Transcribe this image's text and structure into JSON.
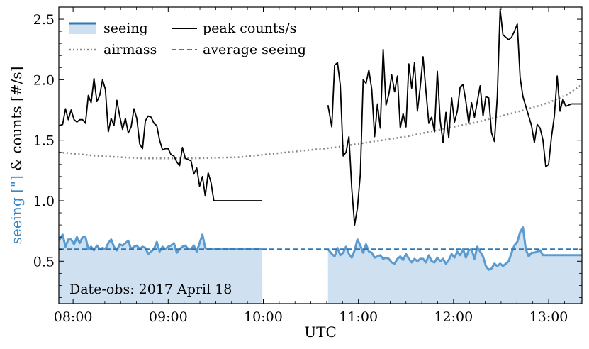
{
  "chart_data": {
    "type": "line",
    "title": "",
    "xlabel": "UTC",
    "ylabel_parts": [
      {
        "text": "seeing [\"]",
        "color": "#3a86c4"
      },
      {
        "text": " & ",
        "color": "#000000"
      },
      {
        "text": "counts [#/s]",
        "color": "#000000"
      }
    ],
    "xlim": [
      7.85,
      13.35
    ],
    "ylim": [
      0.15,
      2.6
    ],
    "xticks": [
      8,
      9,
      10,
      11,
      12,
      13
    ],
    "xtick_labels": [
      "08:00",
      "09:00",
      "10:00",
      "11:00",
      "12:00",
      "13:00"
    ],
    "yticks": [
      0.5,
      1.0,
      1.5,
      2.0,
      2.5
    ],
    "ytick_labels": [
      "0.5",
      "1.0",
      "1.5",
      "2.0",
      "2.5"
    ],
    "legend": {
      "placement": "top-left",
      "entries": [
        {
          "label": "seeing",
          "style": "filled-band"
        },
        {
          "label": "peak counts/s",
          "style": "solid-black"
        },
        {
          "label": "airmass",
          "style": "dotted-gray"
        },
        {
          "label": "average seeing",
          "style": "dashed-blue"
        }
      ]
    },
    "annotation": "Date-obs: 2017 April 18",
    "colors": {
      "seeing_line": "#5b9bd0",
      "seeing_fill": "#cfe1f0",
      "average": "#2e78b5",
      "counts": "#000000",
      "airmass": "#888888"
    },
    "average_seeing": 0.6,
    "series": [
      {
        "name": "peak counts/s",
        "segments": [
          {
            "x": [
              7.85,
              7.89,
              7.92,
              7.95,
              7.98,
              8.01,
              8.04,
              8.07,
              8.1,
              8.13,
              8.16,
              8.19,
              8.22,
              8.25,
              8.28,
              8.31,
              8.34,
              8.37,
              8.4,
              8.43,
              8.46,
              8.49,
              8.52,
              8.55,
              8.58,
              8.61,
              8.64,
              8.67,
              8.7,
              8.73,
              8.76,
              8.79,
              8.82,
              8.85,
              8.88,
              8.91,
              8.94,
              8.97,
              9.0,
              9.03,
              9.06,
              9.09,
              9.12,
              9.15,
              9.18,
              9.21,
              9.24,
              9.27,
              9.3,
              9.33,
              9.36,
              9.39,
              9.42,
              9.45,
              9.48,
              9.51,
              9.54,
              9.57,
              9.6,
              9.63,
              9.66,
              9.69,
              9.72,
              9.75,
              9.78,
              9.81,
              9.84,
              9.87,
              9.9,
              9.93,
              9.96,
              9.99
            ],
            "y": [
              1.62,
              1.63,
              1.76,
              1.67,
              1.75,
              1.67,
              1.65,
              1.67,
              1.67,
              1.64,
              1.87,
              1.81,
              2.01,
              1.82,
              1.87,
              2.0,
              1.92,
              1.57,
              1.68,
              1.62,
              1.83,
              1.7,
              1.59,
              1.68,
              1.56,
              1.61,
              1.76,
              1.68,
              1.47,
              1.43,
              1.66,
              1.7,
              1.69,
              1.64,
              1.62,
              1.5,
              1.42,
              1.43,
              1.43,
              1.38,
              1.37,
              1.32,
              1.29,
              1.44,
              1.35,
              1.34,
              1.33,
              1.22,
              1.27,
              1.12,
              1.2,
              1.04,
              1.23,
              1.15,
              1.0,
              1.0,
              1.0,
              1.0,
              1.0,
              1.0,
              1.0,
              1.0,
              1.0,
              1.0,
              1.0,
              1.0,
              1.0,
              1.0,
              1.0,
              1.0,
              1.0,
              1.0
            ]
          },
          {
            "x": [
              10.68,
              10.72,
              10.75,
              10.78,
              10.81,
              10.84,
              10.87,
              10.9,
              10.93,
              10.96,
              10.99,
              11.02,
              11.05,
              11.08,
              11.11,
              11.14,
              11.17,
              11.2,
              11.23,
              11.26,
              11.29,
              11.32,
              11.35,
              11.38,
              11.41,
              11.44,
              11.47,
              11.5,
              11.53,
              11.56,
              11.59,
              11.62,
              11.65,
              11.68,
              11.71,
              11.74,
              11.77,
              11.8,
              11.83,
              11.86,
              11.89,
              11.92,
              11.95,
              11.98,
              12.01,
              12.04,
              12.07,
              12.1,
              12.13,
              12.16,
              12.19,
              12.22,
              12.25,
              12.28,
              12.31,
              12.34,
              12.37,
              12.4,
              12.43,
              12.46,
              12.49,
              12.52,
              12.55,
              12.58,
              12.61,
              12.64,
              12.67,
              12.7,
              12.73,
              12.76,
              12.79,
              12.82,
              12.85,
              12.88,
              12.91,
              12.94,
              12.97,
              13.0,
              13.03,
              13.06,
              13.09,
              13.12,
              13.15,
              13.18,
              13.21,
              13.24,
              13.27,
              13.3,
              13.35
            ],
            "y": [
              1.79,
              1.61,
              2.12,
              2.14,
              1.95,
              1.37,
              1.4,
              1.53,
              1.1,
              0.8,
              0.94,
              1.22,
              2.0,
              1.97,
              2.08,
              1.92,
              1.53,
              1.8,
              1.6,
              2.25,
              1.79,
              1.88,
              2.04,
              1.9,
              2.03,
              1.6,
              1.72,
              1.61,
              2.13,
              1.93,
              2.14,
              1.74,
              1.94,
              2.19,
              1.91,
              1.64,
              1.69,
              1.57,
              2.07,
              1.66,
              1.48,
              1.73,
              1.52,
              1.85,
              1.65,
              1.74,
              1.94,
              1.96,
              1.82,
              1.64,
              1.81,
              1.69,
              1.82,
              1.95,
              1.7,
              1.86,
              1.85,
              1.56,
              1.49,
              1.86,
              2.58,
              2.37,
              2.35,
              2.33,
              2.35,
              2.4,
              2.46,
              2.02,
              1.86,
              1.78,
              1.7,
              1.62,
              1.48,
              1.63,
              1.6,
              1.5,
              1.28,
              1.3,
              1.53,
              1.7,
              2.03,
              1.74,
              1.84,
              1.78,
              1.79,
              1.8,
              1.8,
              1.8,
              1.8
            ]
          }
        ]
      },
      {
        "name": "seeing",
        "segments": [
          {
            "x": [
              7.85,
              7.89,
              7.92,
              7.95,
              7.98,
              8.01,
              8.04,
              8.07,
              8.1,
              8.13,
              8.16,
              8.19,
              8.22,
              8.25,
              8.28,
              8.31,
              8.34,
              8.37,
              8.4,
              8.43,
              8.46,
              8.49,
              8.52,
              8.55,
              8.58,
              8.61,
              8.64,
              8.67,
              8.7,
              8.73,
              8.76,
              8.79,
              8.82,
              8.85,
              8.88,
              8.91,
              8.94,
              8.97,
              9.0,
              9.03,
              9.06,
              9.09,
              9.12,
              9.15,
              9.18,
              9.21,
              9.24,
              9.27,
              9.3,
              9.33,
              9.36,
              9.39,
              9.42,
              9.45,
              9.48,
              9.51,
              9.54,
              9.57,
              9.6,
              9.63,
              9.66,
              9.69,
              9.72,
              9.75,
              9.78,
              9.81,
              9.84,
              9.87,
              9.9,
              9.93,
              9.96,
              9.99
            ],
            "y": [
              0.67,
              0.72,
              0.62,
              0.68,
              0.68,
              0.64,
              0.7,
              0.65,
              0.7,
              0.7,
              0.6,
              0.62,
              0.59,
              0.63,
              0.6,
              0.61,
              0.6,
              0.65,
              0.68,
              0.62,
              0.59,
              0.64,
              0.63,
              0.65,
              0.67,
              0.6,
              0.62,
              0.63,
              0.6,
              0.62,
              0.61,
              0.56,
              0.58,
              0.6,
              0.66,
              0.58,
              0.62,
              0.6,
              0.62,
              0.63,
              0.65,
              0.57,
              0.6,
              0.62,
              0.63,
              0.6,
              0.6,
              0.63,
              0.58,
              0.65,
              0.72,
              0.61,
              0.6,
              0.6,
              0.6,
              0.6,
              0.6,
              0.6,
              0.6,
              0.6,
              0.6,
              0.6,
              0.6,
              0.6,
              0.6,
              0.6,
              0.6,
              0.6,
              0.6,
              0.6,
              0.6,
              0.6
            ]
          },
          {
            "x": [
              10.68,
              10.72,
              10.75,
              10.78,
              10.81,
              10.84,
              10.87,
              10.9,
              10.93,
              10.96,
              10.99,
              11.02,
              11.05,
              11.08,
              11.11,
              11.14,
              11.17,
              11.2,
              11.23,
              11.26,
              11.29,
              11.32,
              11.35,
              11.38,
              11.41,
              11.44,
              11.47,
              11.5,
              11.53,
              11.56,
              11.59,
              11.62,
              11.65,
              11.68,
              11.71,
              11.74,
              11.77,
              11.8,
              11.83,
              11.86,
              11.89,
              11.92,
              11.95,
              11.98,
              12.01,
              12.04,
              12.07,
              12.1,
              12.13,
              12.16,
              12.19,
              12.22,
              12.25,
              12.28,
              12.31,
              12.34,
              12.37,
              12.4,
              12.43,
              12.46,
              12.49,
              12.52,
              12.55,
              12.58,
              12.61,
              12.64,
              12.67,
              12.7,
              12.73,
              12.76,
              12.79,
              12.82,
              12.85,
              12.88,
              12.91,
              12.94,
              12.97,
              13.0,
              13.03,
              13.06,
              13.09,
              13.12,
              13.15,
              13.18,
              13.21,
              13.24,
              13.27,
              13.3,
              13.35
            ],
            "y": [
              0.6,
              0.56,
              0.54,
              0.61,
              0.55,
              0.57,
              0.62,
              0.56,
              0.53,
              0.59,
              0.68,
              0.63,
              0.57,
              0.64,
              0.58,
              0.57,
              0.53,
              0.54,
              0.55,
              0.52,
              0.53,
              0.52,
              0.49,
              0.48,
              0.52,
              0.54,
              0.51,
              0.56,
              0.52,
              0.49,
              0.52,
              0.5,
              0.52,
              0.52,
              0.49,
              0.55,
              0.5,
              0.49,
              0.53,
              0.5,
              0.52,
              0.48,
              0.51,
              0.56,
              0.53,
              0.58,
              0.55,
              0.6,
              0.53,
              0.59,
              0.6,
              0.52,
              0.62,
              0.58,
              0.54,
              0.46,
              0.43,
              0.44,
              0.48,
              0.46,
              0.48,
              0.46,
              0.48,
              0.5,
              0.57,
              0.63,
              0.66,
              0.74,
              0.78,
              0.6,
              0.54,
              0.57,
              0.57,
              0.58,
              0.59,
              0.55,
              0.55,
              0.55,
              0.55,
              0.55,
              0.55,
              0.55,
              0.55,
              0.55,
              0.55,
              0.55,
              0.55,
              0.55,
              0.55
            ]
          }
        ]
      },
      {
        "name": "airmass",
        "x": [
          7.85,
          8.0,
          8.25,
          8.5,
          8.75,
          9.0,
          9.25,
          9.5,
          9.75,
          10.0,
          10.25,
          10.5,
          10.75,
          11.0,
          11.25,
          11.5,
          11.75,
          12.0,
          12.25,
          12.5,
          12.75,
          13.0,
          13.2,
          13.35
        ],
        "y": [
          1.4,
          1.39,
          1.37,
          1.36,
          1.35,
          1.35,
          1.35,
          1.355,
          1.36,
          1.38,
          1.4,
          1.42,
          1.44,
          1.47,
          1.5,
          1.53,
          1.57,
          1.61,
          1.65,
          1.7,
          1.75,
          1.81,
          1.88,
          1.96
        ]
      }
    ]
  }
}
